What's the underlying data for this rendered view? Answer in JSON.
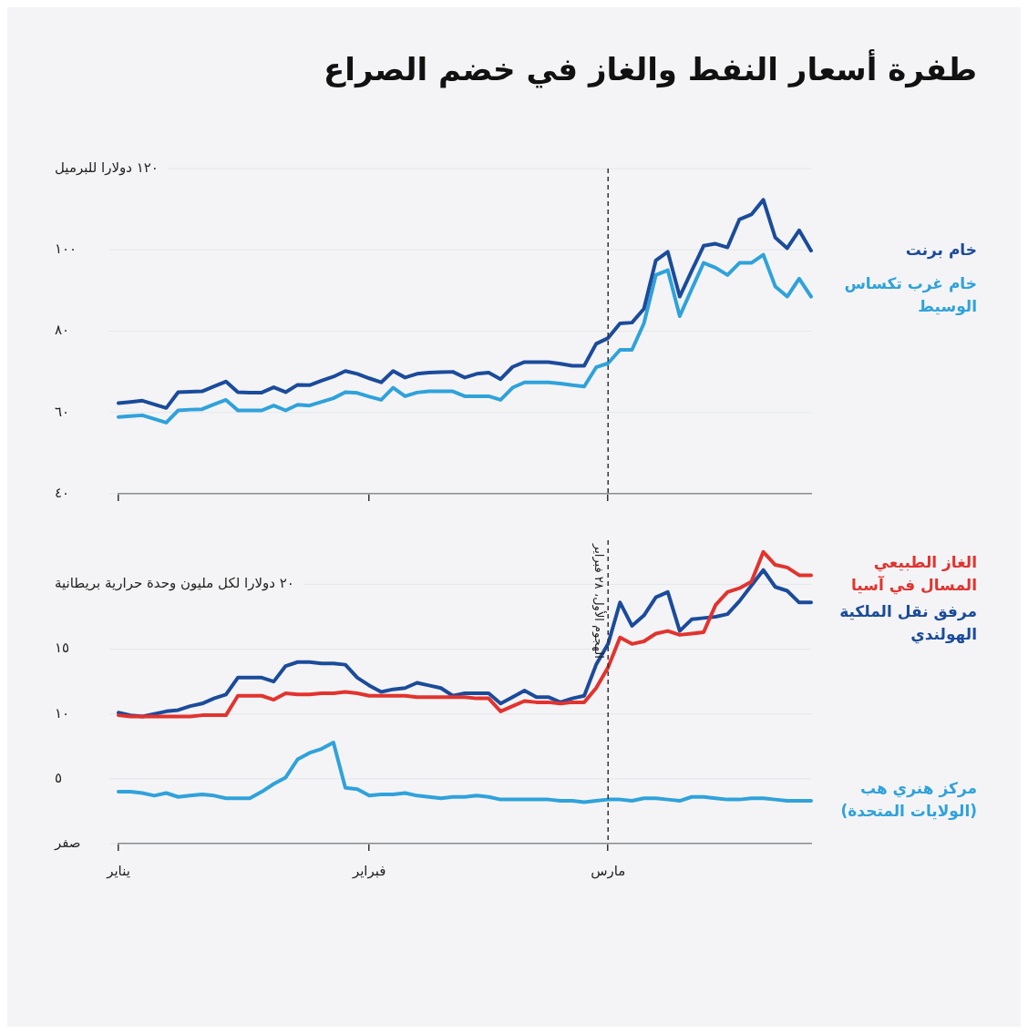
{
  "chart_data": [
    {
      "type": "line",
      "title": "طفرة أسعار النفط والغاز في خضم الصراع",
      "categories": [
        "يناير",
        null,
        null,
        null,
        null,
        null,
        null,
        null,
        null,
        null,
        null,
        null,
        null,
        null,
        null,
        null,
        null,
        null,
        null,
        null,
        null,
        "فبراير",
        null,
        null,
        null,
        null,
        null,
        null,
        null,
        null,
        null,
        null,
        null,
        null,
        null,
        null,
        null,
        null,
        null,
        null,
        null,
        "مارس",
        null,
        null,
        null,
        null,
        null,
        null,
        null,
        null,
        null,
        null,
        null,
        null,
        null,
        null,
        null,
        null,
        null
      ],
      "ylim": [
        40,
        120
      ],
      "yticks": [
        {
          "value": 40,
          "label": "٤٠"
        },
        {
          "value": 60,
          "label": "٦٠"
        },
        {
          "value": 80,
          "label": "٨٠"
        },
        {
          "value": 100,
          "label": "١٠٠"
        },
        {
          "value": 120,
          "label": "١٢٠ دولارا للبرميل"
        }
      ],
      "tick_labels": "y",
      "grid": "y",
      "marker": "none",
      "ref_lines": [
        {
          "axis": "x",
          "value": "مارس",
          "color": "#333333",
          "line_style": "dashed"
        }
      ],
      "series": [
        {
          "name": "خام برنت",
          "color": "#1b4b9b",
          "values": [
            62.3,
            62.6,
            62.9,
            62.0,
            61.1,
            65.0,
            65.1,
            65.2,
            66.4,
            67.6,
            65.0,
            64.9,
            64.9,
            66.2,
            65.0,
            66.8,
            66.7,
            67.8,
            68.8,
            70.2,
            69.5,
            68.4,
            67.4,
            70.2,
            68.6,
            69.5,
            69.8,
            69.9,
            70.0,
            68.6,
            69.5,
            69.8,
            68.2,
            71.2,
            72.4,
            72.4,
            72.4,
            72.0,
            71.5,
            71.5,
            76.9,
            78.3,
            81.9,
            82.1,
            85.5,
            97.4,
            99.5,
            88.5,
            94.8,
            101.0,
            101.5,
            100.6,
            107.5,
            108.7,
            112.3,
            103.0,
            100.4,
            104.8,
            99.8
          ]
        },
        {
          "name": "خام غرب تكساس الوسيط",
          "color": "#2fa2db",
          "values": [
            58.9,
            59.1,
            59.3,
            58.4,
            57.5,
            60.5,
            60.7,
            60.8,
            62.0,
            63.1,
            60.5,
            60.5,
            60.5,
            61.7,
            60.5,
            61.9,
            61.7,
            62.6,
            63.5,
            65.0,
            64.8,
            63.9,
            63.1,
            66.1,
            64.0,
            64.9,
            65.2,
            65.2,
            65.2,
            64.0,
            64.0,
            64.0,
            63.1,
            66.1,
            67.4,
            67.4,
            67.4,
            67.1,
            66.7,
            66.4,
            71.1,
            72.1,
            75.4,
            75.4,
            81.9,
            93.8,
            95.0,
            83.7,
            90.3,
            96.8,
            95.6,
            93.8,
            96.8,
            96.8,
            98.8,
            91.0,
            88.5,
            92.9,
            88.5
          ]
        }
      ]
    },
    {
      "type": "line",
      "categories": [
        "يناير",
        null,
        null,
        null,
        null,
        null,
        null,
        null,
        null,
        null,
        null,
        null,
        null,
        null,
        null,
        null,
        null,
        null,
        null,
        null,
        null,
        "فبراير",
        null,
        null,
        null,
        null,
        null,
        null,
        null,
        null,
        null,
        null,
        null,
        null,
        null,
        null,
        null,
        null,
        null,
        null,
        null,
        "مارس",
        null,
        null,
        null,
        null,
        null,
        null,
        null,
        null,
        null,
        null,
        null,
        null,
        null,
        null,
        null,
        null,
        null
      ],
      "ylim": [
        0,
        23.4
      ],
      "yticks": [
        {
          "value": 0,
          "label": "صفر"
        },
        {
          "value": 5,
          "label": "٥"
        },
        {
          "value": 10,
          "label": "١٠"
        },
        {
          "value": 15,
          "label": "١٥"
        },
        {
          "value": 20,
          "label": "٢٠ دولارا لكل مليون وحدة حرارية بريطانية"
        }
      ],
      "grid": "y",
      "marker": "none",
      "ref_lines": [
        {
          "axis": "x",
          "value": "مارس",
          "color": "#333333",
          "line_style": "dashed",
          "label": "الهجوم الأول، ٢٨ فبراير"
        }
      ],
      "series": [
        {
          "name": "الغاز الطبيعي المسال في آسيا",
          "color": "#e2332e",
          "values": [
            9.9,
            9.8,
            9.8,
            9.8,
            9.8,
            9.8,
            9.8,
            9.9,
            9.9,
            9.9,
            11.4,
            11.4,
            11.4,
            11.1,
            11.6,
            11.5,
            11.5,
            11.6,
            11.6,
            11.7,
            11.6,
            11.4,
            11.4,
            11.4,
            11.4,
            11.3,
            11.3,
            11.3,
            11.3,
            11.3,
            11.2,
            11.2,
            10.2,
            10.6,
            11.0,
            10.9,
            10.9,
            10.8,
            10.9,
            10.9,
            12.0,
            13.6,
            15.9,
            15.4,
            15.6,
            16.2,
            16.4,
            16.1,
            16.2,
            16.3,
            18.4,
            19.4,
            19.7,
            20.2,
            22.5,
            21.5,
            21.3,
            20.7,
            20.7
          ]
        },
        {
          "name": "مرفق نقل الملكية الهولندي",
          "color": "#1b4b9b",
          "values": [
            10.1,
            9.9,
            9.8,
            10.0,
            10.2,
            10.3,
            10.6,
            10.8,
            11.2,
            11.5,
            12.8,
            12.8,
            12.8,
            12.5,
            13.7,
            14.0,
            14.0,
            13.9,
            13.9,
            13.8,
            12.8,
            12.2,
            11.7,
            11.9,
            12.0,
            12.4,
            12.2,
            12.0,
            11.4,
            11.6,
            11.6,
            11.6,
            10.8,
            11.3,
            11.8,
            11.3,
            11.3,
            10.9,
            11.2,
            11.4,
            13.8,
            15.4,
            18.6,
            16.8,
            17.6,
            19.0,
            19.4,
            16.4,
            17.3,
            17.4,
            17.5,
            17.7,
            18.7,
            19.9,
            21.1,
            19.8,
            19.5,
            18.6,
            18.6
          ]
        },
        {
          "name": "مركز هنري هب (الولايات المتحدة)",
          "color": "#2fa2db",
          "values": [
            4.0,
            4.0,
            3.9,
            3.7,
            3.9,
            3.6,
            3.7,
            3.8,
            3.7,
            3.5,
            3.5,
            3.5,
            4.0,
            4.6,
            5.1,
            6.5,
            7.0,
            7.3,
            7.8,
            4.3,
            4.2,
            3.7,
            3.8,
            3.8,
            3.9,
            3.7,
            3.6,
            3.5,
            3.6,
            3.6,
            3.7,
            3.6,
            3.4,
            3.4,
            3.4,
            3.4,
            3.4,
            3.3,
            3.3,
            3.2,
            3.3,
            3.4,
            3.4,
            3.3,
            3.5,
            3.5,
            3.4,
            3.3,
            3.6,
            3.6,
            3.5,
            3.4,
            3.4,
            3.5,
            3.5,
            3.4,
            3.3,
            3.3,
            3.3
          ]
        }
      ]
    }
  ]
}
